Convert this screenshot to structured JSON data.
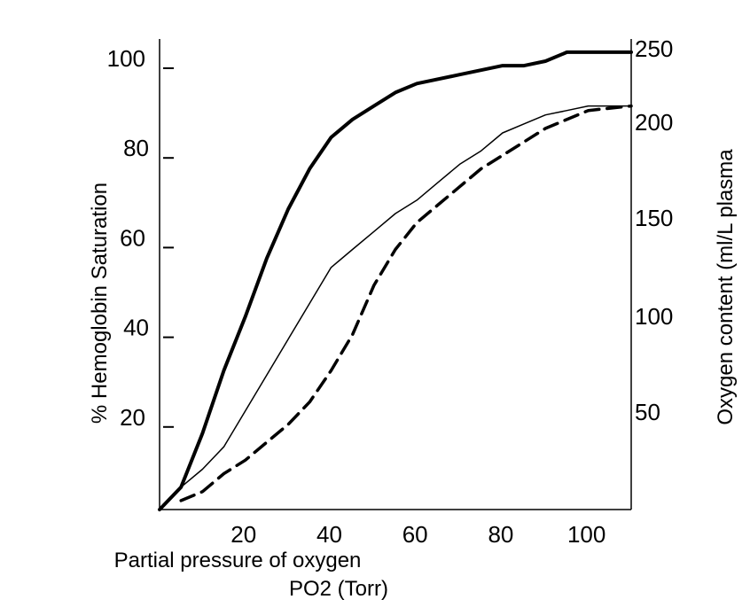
{
  "chart_data": {
    "type": "line",
    "title": "",
    "xlabel_line1": "Partial pressure of oxygen",
    "xlabel_line2": "PO2 (Torr)",
    "ylabel_left": "% Hemoglobin Saturation",
    "ylabel_right": "Oxygen content (ml/L plasma",
    "xlim": [
      0,
      110
    ],
    "ylim_left": [
      0,
      100
    ],
    "ylim_right": [
      0,
      250
    ],
    "grid": false,
    "legend": "none",
    "x_ticks": [
      20,
      40,
      60,
      80,
      100
    ],
    "y_left_ticks": [
      20,
      40,
      60,
      80,
      100
    ],
    "y_right_ticks": [
      50,
      100,
      150,
      200,
      250
    ],
    "series": [
      {
        "style": "thick",
        "points": [
          [
            0,
            0
          ],
          [
            5,
            5
          ],
          [
            10,
            17
          ],
          [
            15,
            31
          ],
          [
            20,
            43
          ],
          [
            25,
            56
          ],
          [
            30,
            67
          ],
          [
            35,
            76
          ],
          [
            40,
            83
          ],
          [
            45,
            87
          ],
          [
            50,
            90
          ],
          [
            55,
            93
          ],
          [
            60,
            95
          ],
          [
            70,
            97
          ],
          [
            80,
            99
          ],
          [
            85,
            99
          ],
          [
            90,
            100
          ],
          [
            95,
            102
          ],
          [
            100,
            102
          ],
          [
            110,
            102
          ]
        ]
      },
      {
        "style": "thin",
        "points": [
          [
            0,
            0
          ],
          [
            5,
            5
          ],
          [
            10,
            9
          ],
          [
            15,
            14
          ],
          [
            20,
            22
          ],
          [
            25,
            30
          ],
          [
            30,
            38
          ],
          [
            35,
            46
          ],
          [
            40,
            54
          ],
          [
            45,
            58
          ],
          [
            50,
            62
          ],
          [
            55,
            66
          ],
          [
            60,
            69
          ],
          [
            65,
            73
          ],
          [
            70,
            77
          ],
          [
            75,
            80
          ],
          [
            80,
            84
          ],
          [
            85,
            86
          ],
          [
            90,
            88
          ],
          [
            95,
            89
          ],
          [
            100,
            90
          ],
          [
            110,
            90
          ]
        ]
      },
      {
        "style": "dashed",
        "points": [
          [
            5,
            2
          ],
          [
            10,
            4
          ],
          [
            15,
            8
          ],
          [
            20,
            11
          ],
          [
            25,
            15
          ],
          [
            30,
            19
          ],
          [
            35,
            24
          ],
          [
            40,
            31
          ],
          [
            45,
            39
          ],
          [
            50,
            50
          ],
          [
            55,
            58
          ],
          [
            60,
            64
          ],
          [
            65,
            68
          ],
          [
            70,
            72
          ],
          [
            75,
            76
          ],
          [
            80,
            79
          ],
          [
            85,
            82
          ],
          [
            90,
            85
          ],
          [
            95,
            87
          ],
          [
            100,
            89
          ],
          [
            110,
            90
          ]
        ]
      }
    ]
  }
}
